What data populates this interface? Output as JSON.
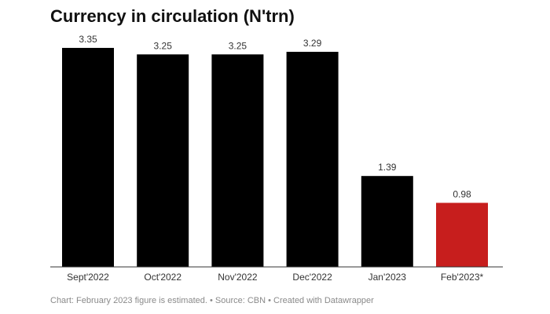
{
  "chart_data": {
    "type": "bar",
    "title": "Currency in circulation (N'trn)",
    "categories": [
      "Sept'2022",
      "Oct'2022",
      "Nov'2022",
      "Dec'2022",
      "Jan'2023",
      "Feb'2023*"
    ],
    "values": [
      3.35,
      3.25,
      3.25,
      3.29,
      1.39,
      0.98
    ],
    "data_labels": [
      "3.35",
      "3.25",
      "3.25",
      "3.29",
      "1.39",
      "0.98"
    ],
    "xlabel": "",
    "ylabel": "",
    "ylim": [
      0,
      3.35
    ],
    "grid": false,
    "legend": "none",
    "colors": {
      "default_bar": "#000000",
      "highlight_bar": "#c71e1d",
      "highlight_index": 5
    }
  },
  "footer": {
    "text": "Chart: February 2023 figure is estimated. • Source: CBN • Created with Datawrapper"
  }
}
